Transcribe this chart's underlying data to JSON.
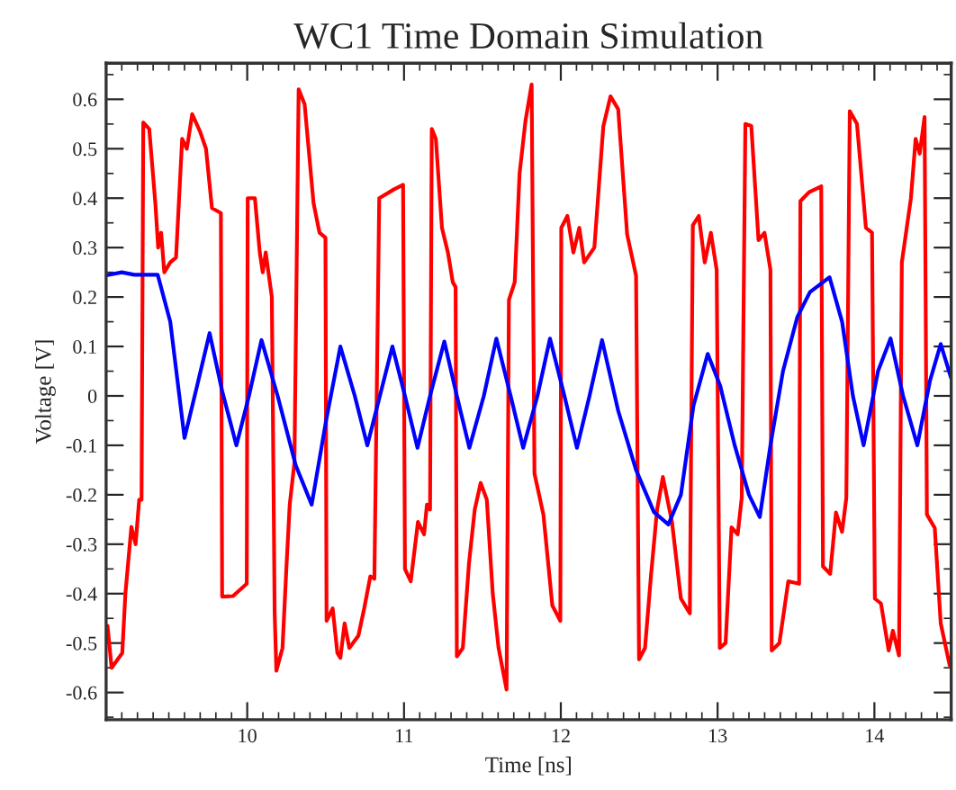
{
  "chart_data": {
    "type": "line",
    "title": "WC1 Time Domain Simulation",
    "xlabel": "Time [ns]",
    "ylabel": "Voltage [V]",
    "xlim": [
      9.1,
      14.49
    ],
    "xticks": [
      10,
      11,
      12,
      13,
      14
    ],
    "ylim": [
      -0.655,
      0.673
    ],
    "yticks": [
      -0.6,
      -0.5,
      -0.4,
      -0.3,
      -0.2,
      -0.1,
      0,
      0.1,
      0.2,
      0.3,
      0.4,
      0.5,
      0.6
    ],
    "grid": false,
    "legend": false,
    "line_style": "solid",
    "marker": "none",
    "series": [
      {
        "color": "#ff0000",
        "x": [
          9.109,
          9.135,
          9.203,
          9.223,
          9.261,
          9.288,
          9.311,
          9.326,
          9.337,
          9.375,
          9.414,
          9.432,
          9.451,
          9.471,
          9.509,
          9.546,
          9.585,
          9.615,
          9.649,
          9.699,
          9.737,
          9.775,
          9.832,
          9.84,
          9.909,
          9.997,
          10.003,
          10.049,
          10.08,
          10.099,
          10.118,
          10.157,
          10.175,
          10.186,
          10.225,
          10.251,
          10.271,
          10.301,
          10.328,
          10.366,
          10.423,
          10.461,
          10.499,
          10.506,
          10.545,
          10.575,
          10.594,
          10.621,
          10.651,
          10.709,
          10.746,
          10.785,
          10.811,
          10.842,
          10.937,
          10.994,
          11.006,
          11.043,
          11.089,
          11.128,
          11.146,
          11.166,
          11.177,
          11.203,
          11.242,
          11.28,
          11.311,
          11.329,
          11.337,
          11.375,
          11.414,
          11.451,
          11.489,
          11.528,
          11.566,
          11.603,
          11.654,
          11.669,
          11.706,
          11.737,
          11.775,
          11.814,
          11.832,
          11.889,
          11.946,
          11.997,
          12.003,
          12.042,
          12.08,
          12.118,
          12.149,
          12.214,
          12.271,
          12.317,
          12.366,
          12.423,
          12.48,
          12.499,
          12.537,
          12.575,
          12.614,
          12.651,
          12.709,
          12.766,
          12.823,
          12.842,
          12.88,
          12.918,
          12.957,
          12.994,
          13.014,
          13.051,
          13.089,
          13.128,
          13.154,
          13.177,
          13.215,
          13.261,
          13.299,
          13.337,
          13.345,
          13.394,
          13.451,
          13.52,
          13.528,
          13.583,
          13.661,
          13.672,
          13.718,
          13.755,
          13.794,
          13.821,
          13.843,
          13.889,
          13.946,
          13.985,
          14.003,
          14.042,
          14.091,
          14.118,
          14.157,
          14.175,
          14.233,
          14.263,
          14.289,
          14.32,
          14.335,
          14.385,
          14.423,
          14.48
        ],
        "values": [
          -0.465,
          -0.55,
          -0.52,
          -0.4,
          -0.265,
          -0.3,
          -0.21,
          -0.21,
          0.553,
          0.54,
          0.39,
          0.3,
          0.33,
          0.25,
          0.27,
          0.28,
          0.52,
          0.5,
          0.57,
          0.535,
          0.5,
          0.38,
          0.37,
          -0.406,
          -0.405,
          -0.38,
          0.4,
          0.4,
          0.29,
          0.25,
          0.29,
          0.2,
          -0.44,
          -0.556,
          -0.51,
          -0.34,
          -0.22,
          -0.135,
          0.62,
          0.59,
          0.39,
          0.33,
          0.32,
          -0.455,
          -0.43,
          -0.52,
          -0.53,
          -0.46,
          -0.51,
          -0.485,
          -0.43,
          -0.365,
          -0.37,
          0.4,
          0.418,
          0.427,
          -0.35,
          -0.375,
          -0.255,
          -0.28,
          -0.22,
          -0.23,
          0.54,
          0.52,
          0.34,
          0.29,
          0.23,
          0.22,
          -0.527,
          -0.51,
          -0.34,
          -0.23,
          -0.176,
          -0.21,
          -0.4,
          -0.51,
          -0.594,
          0.194,
          0.23,
          0.45,
          0.557,
          0.63,
          -0.157,
          -0.24,
          -0.424,
          -0.455,
          0.34,
          0.364,
          0.29,
          0.34,
          0.27,
          0.3,
          0.545,
          0.606,
          0.58,
          0.327,
          0.243,
          -0.533,
          -0.51,
          -0.364,
          -0.23,
          -0.164,
          -0.255,
          -0.41,
          -0.44,
          0.345,
          0.364,
          0.27,
          0.33,
          0.255,
          -0.51,
          -0.5,
          -0.266,
          -0.28,
          -0.206,
          0.55,
          0.546,
          0.315,
          0.33,
          0.255,
          -0.515,
          -0.5,
          -0.375,
          -0.38,
          0.394,
          0.412,
          0.424,
          -0.345,
          -0.36,
          -0.236,
          -0.275,
          -0.206,
          0.576,
          0.55,
          0.34,
          0.33,
          -0.41,
          -0.42,
          -0.515,
          -0.475,
          -0.525,
          0.27,
          0.4,
          0.52,
          0.49,
          0.564,
          -0.24,
          -0.267,
          -0.46,
          -0.545
        ]
      },
      {
        "color": "#0000ff",
        "x": [
          9.1,
          9.2,
          9.28,
          9.429,
          9.509,
          9.6,
          9.68,
          9.76,
          9.84,
          9.931,
          10.011,
          10.091,
          10.194,
          10.309,
          10.411,
          10.503,
          10.594,
          10.686,
          10.766,
          10.846,
          10.926,
          11.006,
          11.086,
          11.166,
          11.257,
          11.337,
          11.417,
          11.509,
          11.589,
          11.68,
          11.76,
          11.851,
          11.931,
          12.023,
          12.103,
          12.183,
          12.263,
          12.366,
          12.48,
          12.594,
          12.686,
          12.766,
          12.846,
          12.937,
          13.017,
          13.109,
          13.2,
          13.269,
          13.337,
          13.417,
          13.509,
          13.589,
          13.714,
          13.794,
          13.863,
          13.931,
          14.023,
          14.103,
          14.183,
          14.274,
          14.354,
          14.423,
          14.49
        ],
        "values": [
          0.244,
          0.25,
          0.245,
          0.245,
          0.15,
          -0.085,
          0.02,
          0.127,
          0.01,
          -0.1,
          0.0,
          0.113,
          0.0,
          -0.14,
          -0.22,
          -0.05,
          0.1,
          0.0,
          -0.1,
          0.0,
          0.1,
          0.0,
          -0.105,
          0.0,
          0.11,
          0.0,
          -0.105,
          0.0,
          0.116,
          0.0,
          -0.105,
          0.0,
          0.116,
          0.0,
          -0.105,
          0.0,
          0.113,
          -0.03,
          -0.15,
          -0.235,
          -0.26,
          -0.2,
          -0.02,
          0.085,
          0.02,
          -0.1,
          -0.2,
          -0.245,
          -0.1,
          0.05,
          0.16,
          0.21,
          0.24,
          0.15,
          0.0,
          -0.1,
          0.05,
          0.116,
          0.0,
          -0.1,
          0.03,
          0.105,
          0.035
        ]
      }
    ]
  }
}
